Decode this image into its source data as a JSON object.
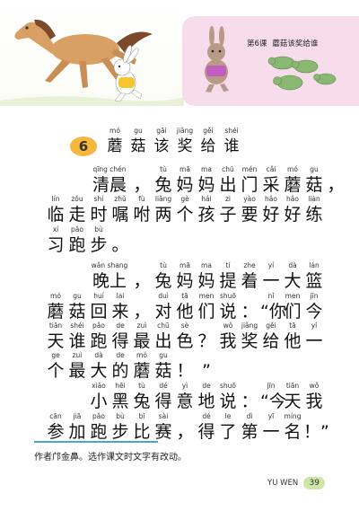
{
  "header": {
    "lesson_label": "第6课",
    "lesson_title": "蘑菇该奖给谁"
  },
  "title": {
    "number": "6",
    "chars": [
      {
        "py": "mó",
        "hz": "蘑"
      },
      {
        "py": "gu",
        "hz": "菇"
      },
      {
        "py": "gāi",
        "hz": "该"
      },
      {
        "py": "jiǎng",
        "hz": "奖"
      },
      {
        "py": "gěi",
        "hz": "给"
      },
      {
        "py": "shéi",
        "hz": "谁"
      }
    ]
  },
  "lines": [
    [
      {
        "py": "qīng chén",
        "hz": "清晨",
        "span": 2
      },
      {
        "py": "",
        "hz": "，"
      },
      {
        "py": "tù",
        "hz": "兔"
      },
      {
        "py": "mā",
        "hz": "妈"
      },
      {
        "py": "ma",
        "hz": "妈"
      },
      {
        "py": "chū",
        "hz": "出"
      },
      {
        "py": "mén",
        "hz": "门"
      },
      {
        "py": "cǎi",
        "hz": "采"
      },
      {
        "py": "mó",
        "hz": "蘑"
      },
      {
        "py": "gu",
        "hz": "菇"
      },
      {
        "py": "",
        "hz": "，"
      }
    ],
    [
      {
        "py": "lín",
        "hz": "临"
      },
      {
        "py": "zǒu",
        "hz": "走"
      },
      {
        "py": "shí",
        "hz": "时"
      },
      {
        "py": "zhǔ",
        "hz": "嘱"
      },
      {
        "py": "fù",
        "hz": "咐"
      },
      {
        "py": "liǎng",
        "hz": "两"
      },
      {
        "py": "gè",
        "hz": "个"
      },
      {
        "py": "hái",
        "hz": "孩"
      },
      {
        "py": "zi",
        "hz": "子"
      },
      {
        "py": "yào",
        "hz": "要"
      },
      {
        "py": "hǎo",
        "hz": "好"
      },
      {
        "py": "hǎo",
        "hz": "好"
      },
      {
        "py": "liàn",
        "hz": "练"
      }
    ],
    [
      {
        "py": "xí",
        "hz": "习"
      },
      {
        "py": "pǎo",
        "hz": "跑"
      },
      {
        "py": "bù",
        "hz": "步"
      },
      {
        "py": "",
        "hz": "。"
      }
    ],
    [
      {
        "py": "wǎn shang",
        "hz": "晚上",
        "span": 2
      },
      {
        "py": "",
        "hz": "，"
      },
      {
        "py": "tù",
        "hz": "兔"
      },
      {
        "py": "mā",
        "hz": "妈"
      },
      {
        "py": "ma",
        "hz": "妈"
      },
      {
        "py": "tí",
        "hz": "提"
      },
      {
        "py": "zhe",
        "hz": "着"
      },
      {
        "py": "yí",
        "hz": "一"
      },
      {
        "py": "dà",
        "hz": "大"
      },
      {
        "py": "lán",
        "hz": "篮"
      }
    ],
    [
      {
        "py": "mó",
        "hz": "蘑"
      },
      {
        "py": "gu",
        "hz": "菇"
      },
      {
        "py": "huí",
        "hz": "回"
      },
      {
        "py": "lai",
        "hz": "来"
      },
      {
        "py": "",
        "hz": "，"
      },
      {
        "py": "duì",
        "hz": "对"
      },
      {
        "py": "tā",
        "hz": "他"
      },
      {
        "py": "men",
        "hz": "们"
      },
      {
        "py": "shuō",
        "hz": "说"
      },
      {
        "py": "",
        "hz": "："
      },
      {
        "py": "nǐ",
        "hz": "“你"
      },
      {
        "py": "men",
        "hz": "们"
      },
      {
        "py": "jīn",
        "hz": "今"
      }
    ],
    [
      {
        "py": "tiān",
        "hz": "天"
      },
      {
        "py": "shéi",
        "hz": "谁"
      },
      {
        "py": "pǎo",
        "hz": "跑"
      },
      {
        "py": "de",
        "hz": "得"
      },
      {
        "py": "zuì",
        "hz": "最"
      },
      {
        "py": "chū",
        "hz": "出"
      },
      {
        "py": "sè",
        "hz": "色"
      },
      {
        "py": "",
        "hz": "？"
      },
      {
        "py": "wǒ",
        "hz": "我"
      },
      {
        "py": "jiǎng",
        "hz": "奖"
      },
      {
        "py": "gěi",
        "hz": "给"
      },
      {
        "py": "tā",
        "hz": "他"
      },
      {
        "py": "yí",
        "hz": "一"
      }
    ],
    [
      {
        "py": "ge",
        "hz": "个"
      },
      {
        "py": "zuì",
        "hz": "最"
      },
      {
        "py": "dà",
        "hz": "大"
      },
      {
        "py": "de",
        "hz": "的"
      },
      {
        "py": "mó",
        "hz": "蘑"
      },
      {
        "py": "gu",
        "hz": "菇"
      },
      {
        "py": "",
        "hz": "！"
      },
      {
        "py": "",
        "hz": "”"
      }
    ],
    [
      {
        "py": "xiǎo",
        "hz": "小"
      },
      {
        "py": "hēi",
        "hz": "黑"
      },
      {
        "py": "tù",
        "hz": "兔"
      },
      {
        "py": "dé",
        "hz": "得"
      },
      {
        "py": "yì",
        "hz": "意"
      },
      {
        "py": "de",
        "hz": "地"
      },
      {
        "py": "shuō",
        "hz": "说"
      },
      {
        "py": "",
        "hz": "："
      },
      {
        "py": "jīn",
        "hz": "“今"
      },
      {
        "py": "tiān",
        "hz": "天"
      },
      {
        "py": "wǒ",
        "hz": "我"
      }
    ],
    [
      {
        "py": "cān",
        "hz": "参"
      },
      {
        "py": "jiā",
        "hz": "加"
      },
      {
        "py": "pǎo",
        "hz": "跑"
      },
      {
        "py": "bù",
        "hz": "步"
      },
      {
        "py": "bǐ",
        "hz": "比"
      },
      {
        "py": "sài",
        "hz": "赛"
      },
      {
        "py": "",
        "hz": "，"
      },
      {
        "py": "dé",
        "hz": "得"
      },
      {
        "py": "le",
        "hz": "了"
      },
      {
        "py": "dì",
        "hz": "第"
      },
      {
        "py": "yī",
        "hz": "一"
      },
      {
        "py": "míng",
        "hz": "名"
      },
      {
        "py": "",
        "hz": "！”"
      }
    ]
  ],
  "footnote": "作者邝金鼻。选作课文时文字有改动。",
  "footer": {
    "subject": "YU WEN",
    "page_number": "39"
  }
}
